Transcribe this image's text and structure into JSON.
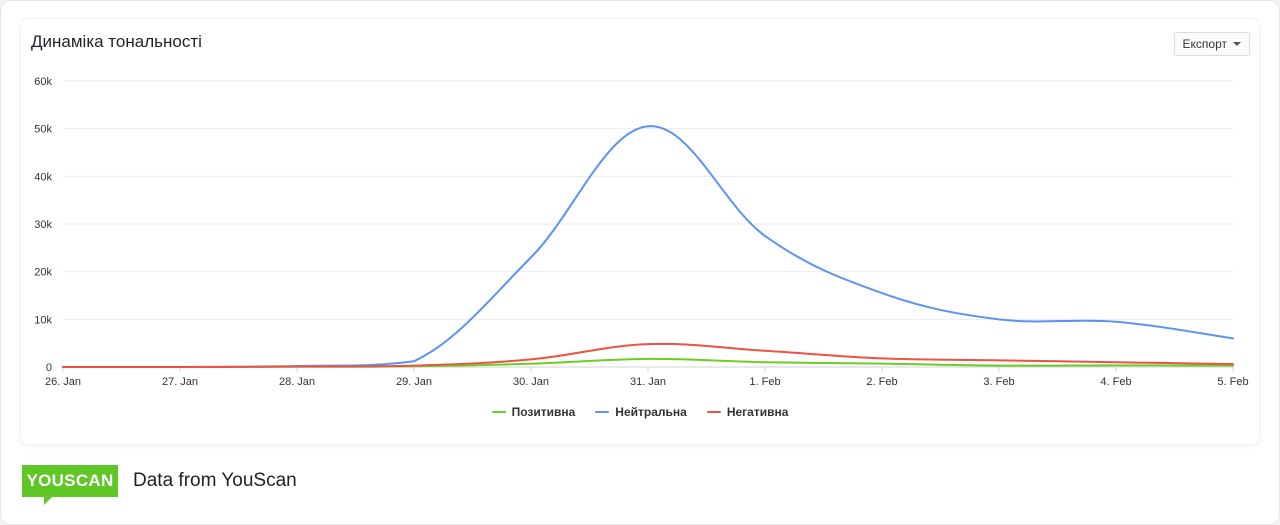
{
  "card": {
    "title": "Динаміка тональності",
    "export_label": "Експорт",
    "export_icon": "chevron-down-icon"
  },
  "footer": {
    "logo_text": "YOUSCAN",
    "caption": "Data from YouScan"
  },
  "colors": {
    "positive": "#6bcf23",
    "neutral": "#5b93f5",
    "negative": "#ef5142",
    "grid": "#e9ebee",
    "logo": "#5fc726"
  },
  "chart_data": {
    "type": "line",
    "title": "Динаміка тональності",
    "x": [
      "26. Jan",
      "27. Jan",
      "28. Jan",
      "29. Jan",
      "30. Jan",
      "31. Jan",
      "1. Feb",
      "2. Feb",
      "3. Feb",
      "4. Feb",
      "5. Feb"
    ],
    "ylim": [
      0,
      60000
    ],
    "yticks": [
      0,
      10000,
      20000,
      30000,
      40000,
      50000,
      60000
    ],
    "ytick_labels": [
      "0",
      "10k",
      "20k",
      "30k",
      "40k",
      "50k",
      "60k"
    ],
    "grid": true,
    "legend_position": "bottom-center",
    "series": [
      {
        "name": "Позитивна",
        "color": "#6bcf23",
        "values": [
          0,
          0,
          50,
          150,
          700,
          1700,
          1000,
          700,
          300,
          350,
          300
        ]
      },
      {
        "name": "Нейтральна",
        "color": "#5b93f5",
        "values": [
          0,
          0,
          200,
          1200,
          23000,
          50500,
          27500,
          15500,
          10000,
          9500,
          6000
        ]
      },
      {
        "name": "Негативна",
        "color": "#ef5142",
        "values": [
          0,
          0,
          100,
          300,
          1600,
          4800,
          3400,
          1800,
          1400,
          1000,
          600
        ]
      }
    ]
  }
}
